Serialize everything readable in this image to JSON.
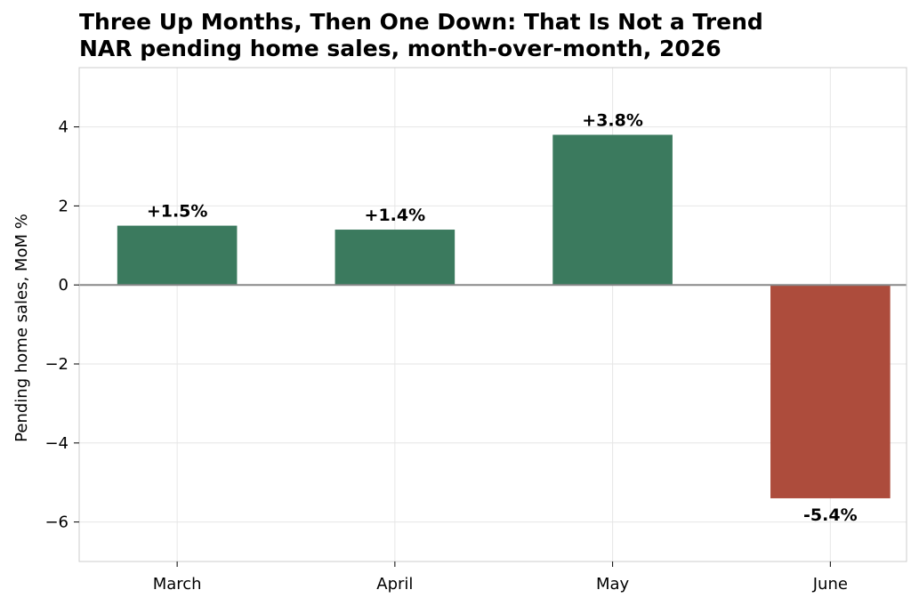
{
  "chart_data": {
    "type": "bar",
    "title": "Three Up Months, Then One Down: That Is Not a Trend",
    "subtitle": "NAR pending home sales, month-over-month, 2026",
    "xlabel": "",
    "ylabel": "Pending home sales, MoM %",
    "categories": [
      "March",
      "April",
      "May",
      "June"
    ],
    "values": [
      1.5,
      1.4,
      3.8,
      -5.4
    ],
    "data_labels": [
      "+1.5%",
      "+1.4%",
      "+3.8%",
      "-5.4%"
    ],
    "ylim": [
      -7,
      5.5
    ],
    "yticks": [
      4,
      2,
      0,
      -2,
      -4,
      -6
    ],
    "ytick_labels": [
      "4",
      "2",
      "0",
      "−2",
      "−4",
      "−6"
    ],
    "grid": true,
    "colors": {
      "positive": "#3b7a5e",
      "negative": "#ad4c3c",
      "zero_line": "#888888",
      "grid": "#e6e6e6",
      "frame": "#cccccc"
    }
  }
}
